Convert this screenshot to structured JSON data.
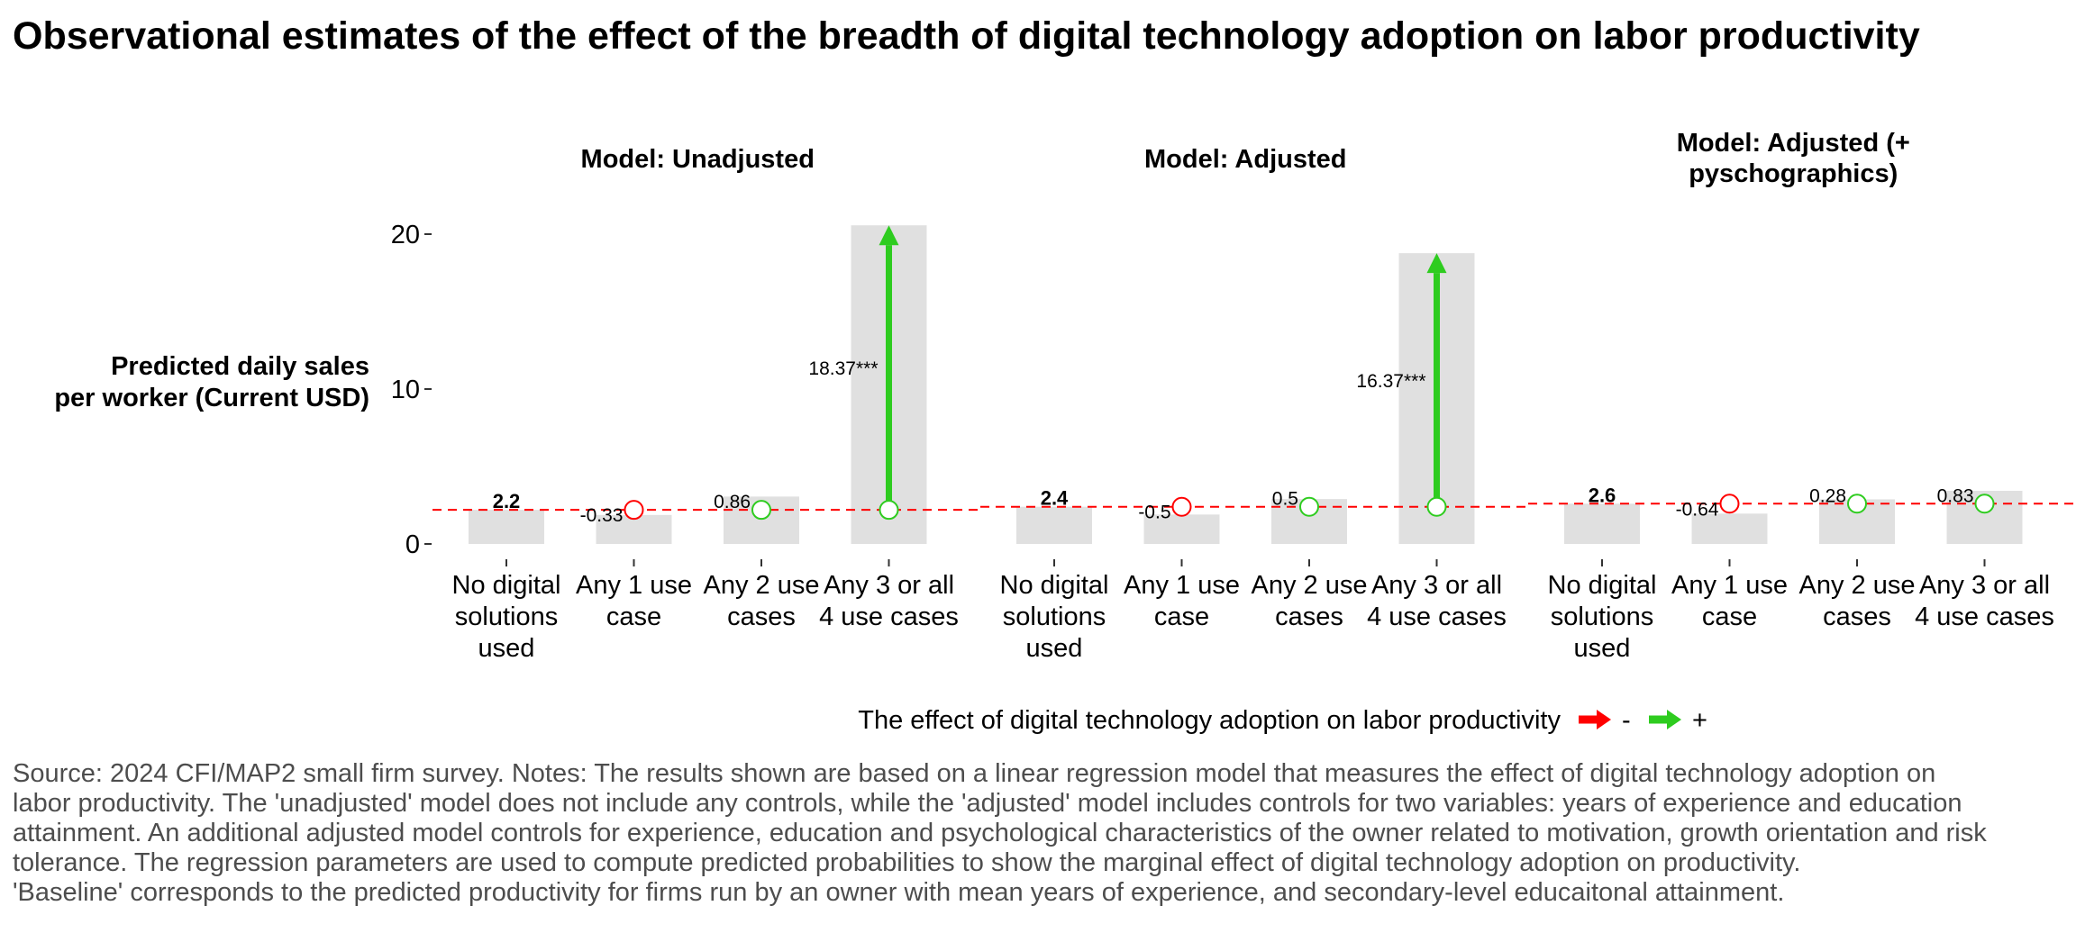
{
  "title": "Observational estimates of the effect of the breadth of digital technology adoption on labor productivity",
  "caption_lines": [
    "Source: 2024 CFI/MAP2 small firm survey. Notes: The results shown are based on a linear regression model that measures the effect of digital technology adoption on",
    "labor productivity. The 'unadjusted' model does not include any controls, while the 'adjusted' model includes controls for two variables: years of experience and education",
    "attainment. An additional adjusted model controls for experience, education and psychological characteristics of the owner related to motivation, growth orientation and risk",
    "tolerance. The regression parameters are used to compute predicted probabilities to show the marginal effect of digital technology adoption on productivity.",
    "'Baseline' corresponds to the predicted productivity for firms run by an owner with mean years of experience, and secondary-level educaitonal attainment."
  ],
  "chart_data": {
    "type": "bar",
    "ylabel": "Predicted daily sales per worker (Current USD)",
    "ylim": [
      -0.5,
      21.5
    ],
    "yticks": [
      0,
      10,
      20
    ],
    "categories": [
      "No digital solutions used",
      "Any 1 use case",
      "Any 2 use cases",
      "Any 3 or all 4 use cases"
    ],
    "panels": [
      {
        "name": "Model: Unadjusted",
        "baseline": 2.2,
        "baseline_label": "2.2",
        "values": [
          2.2,
          1.87,
          3.06,
          20.57
        ],
        "effects": [
          null,
          -0.33,
          0.86,
          18.37
        ],
        "effect_labels": [
          "",
          "-0.33",
          "0.86",
          "18.37***"
        ]
      },
      {
        "name": "Model: Adjusted",
        "baseline": 2.4,
        "baseline_label": "2.4",
        "values": [
          2.4,
          1.9,
          2.9,
          18.77
        ],
        "effects": [
          null,
          -0.5,
          0.5,
          16.37
        ],
        "effect_labels": [
          "",
          "-0.5",
          "0.5",
          "16.37***"
        ]
      },
      {
        "name": "Model: Adjusted (+ pyschographics)",
        "baseline": 2.6,
        "baseline_label": "2.6",
        "values": [
          2.6,
          1.96,
          2.88,
          3.43
        ],
        "effects": [
          null,
          -0.64,
          0.28,
          0.83
        ],
        "effect_labels": [
          "",
          "-0.64",
          "0.28",
          "0.83"
        ]
      }
    ],
    "legend": {
      "title": "The effect of digital technology adoption on labor productivity",
      "position": "bottom",
      "items": [
        {
          "label": "-",
          "color": "#ff0000"
        },
        {
          "label": "+",
          "color": "#2ecc1f"
        }
      ]
    },
    "colors": {
      "bar": "#e0e0e0",
      "baseline_line": "#ff0000",
      "negative": "#ff0000",
      "positive": "#2ecc1f"
    }
  }
}
